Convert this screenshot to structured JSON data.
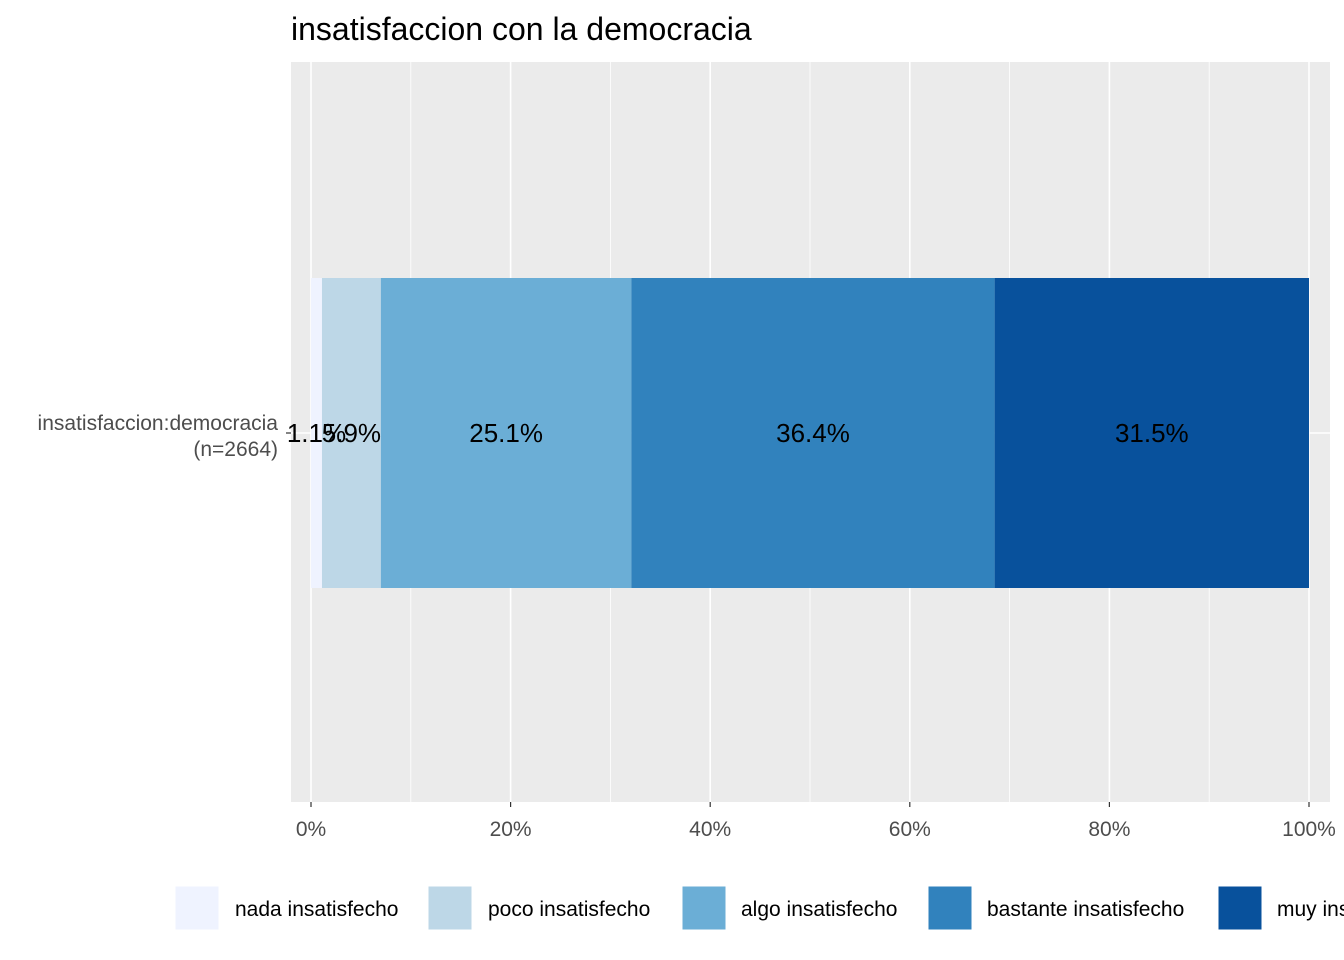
{
  "chart_data": {
    "type": "bar",
    "orientation": "horizontal",
    "stacked": true,
    "title": "insatisfaccion con la democracia",
    "xlabel": "",
    "ylabel": "",
    "categories": [
      "insatisfaccion:democracia\n(n=2664)"
    ],
    "category_lines": [
      "insatisfaccion:democracia",
      "(n=2664)"
    ],
    "xlim": [
      0,
      100
    ],
    "x_ticks": [
      "0%",
      "20%",
      "40%",
      "60%",
      "80%",
      "100%"
    ],
    "grid": true,
    "legend_position": "bottom",
    "series": [
      {
        "name": "nada insatisfecho",
        "values": [
          1.1
        ],
        "label": "1.1%",
        "color": "#eff3ff"
      },
      {
        "name": "poco insatisfecho",
        "values": [
          5.9
        ],
        "label": "5.9%",
        "color": "#bdd7e7"
      },
      {
        "name": "algo insatisfecho",
        "values": [
          25.1
        ],
        "label": "25.1%",
        "color": "#6baed6"
      },
      {
        "name": "bastante insatisfecho",
        "values": [
          36.4
        ],
        "label": "36.4%",
        "color": "#3182bd"
      },
      {
        "name": "muy insatisfecho",
        "values": [
          31.5
        ],
        "label": "31.5%",
        "color": "#08519c"
      }
    ]
  }
}
